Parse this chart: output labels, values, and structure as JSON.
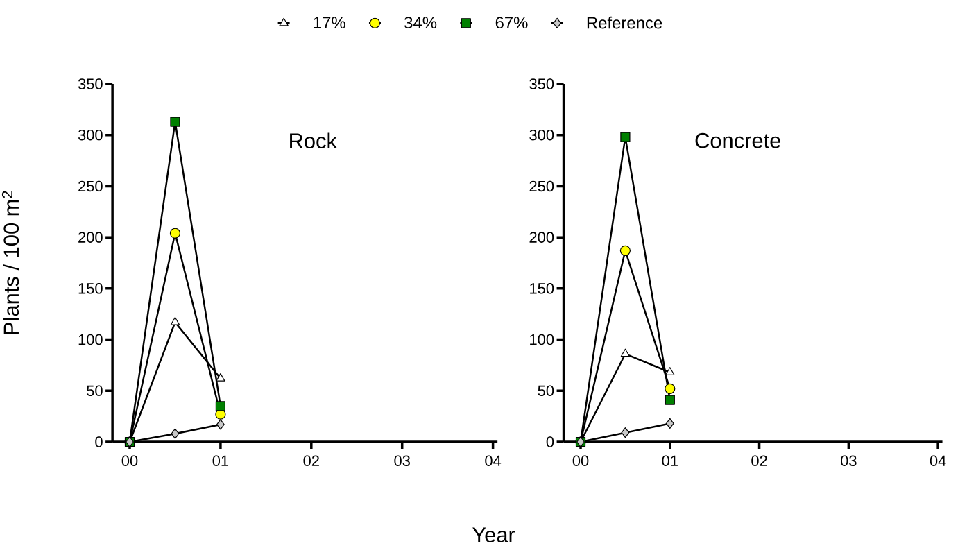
{
  "chart_data": [
    {
      "type": "line",
      "title": "Rock",
      "xlabel": "Year",
      "ylabel": "Plants / 100 m$^{2}$",
      "legend": "top",
      "line_style": "solid",
      "xlim": [
        -0.19,
        4.05
      ],
      "xticks": [
        {
          "value": 0,
          "label": "00"
        },
        {
          "value": 1,
          "label": "01"
        },
        {
          "value": 2,
          "label": "02"
        },
        {
          "value": 3,
          "label": "03"
        },
        {
          "value": 4,
          "label": "04"
        }
      ],
      "ylim": [
        0,
        350
      ],
      "yticks": [
        0,
        50,
        100,
        150,
        200,
        250,
        300,
        350
      ],
      "x": [
        0,
        0.5,
        1
      ],
      "series": [
        {
          "name": "17%",
          "color": "#ffffff",
          "marker": "triangle",
          "values": [
            0,
            117,
            62
          ]
        },
        {
          "name": "34%",
          "color": "#ffff00",
          "marker": "circle",
          "values": [
            0,
            204,
            27
          ]
        },
        {
          "name": "67%",
          "color": "#008000",
          "marker": "square",
          "values": [
            0,
            313,
            35
          ]
        },
        {
          "name": "Reference",
          "color": "#c8c8c8",
          "marker": "diamond",
          "values": [
            0,
            8,
            17
          ]
        }
      ]
    },
    {
      "type": "line",
      "title": "Concrete",
      "line_style": "solid",
      "xlim": [
        -0.19,
        4.05
      ],
      "xticks": [
        {
          "value": 0,
          "label": "00"
        },
        {
          "value": 1,
          "label": "01"
        },
        {
          "value": 2,
          "label": "02"
        },
        {
          "value": 3,
          "label": "03"
        },
        {
          "value": 4,
          "label": "04"
        }
      ],
      "ylim": [
        0,
        350
      ],
      "yticks": [
        0,
        50,
        100,
        150,
        200,
        250,
        300,
        350
      ],
      "x": [
        0,
        0.5,
        1
      ],
      "series": [
        {
          "color": "#ffffff",
          "marker": "triangle",
          "values": [
            0,
            86,
            68
          ]
        },
        {
          "color": "#ffff00",
          "marker": "circle",
          "values": [
            0,
            187,
            52
          ]
        },
        {
          "color": "#008000",
          "marker": "square",
          "values": [
            0,
            298,
            41
          ]
        },
        {
          "color": "#c8c8c8",
          "marker": "diamond",
          "values": [
            0,
            9,
            18
          ]
        }
      ]
    }
  ]
}
